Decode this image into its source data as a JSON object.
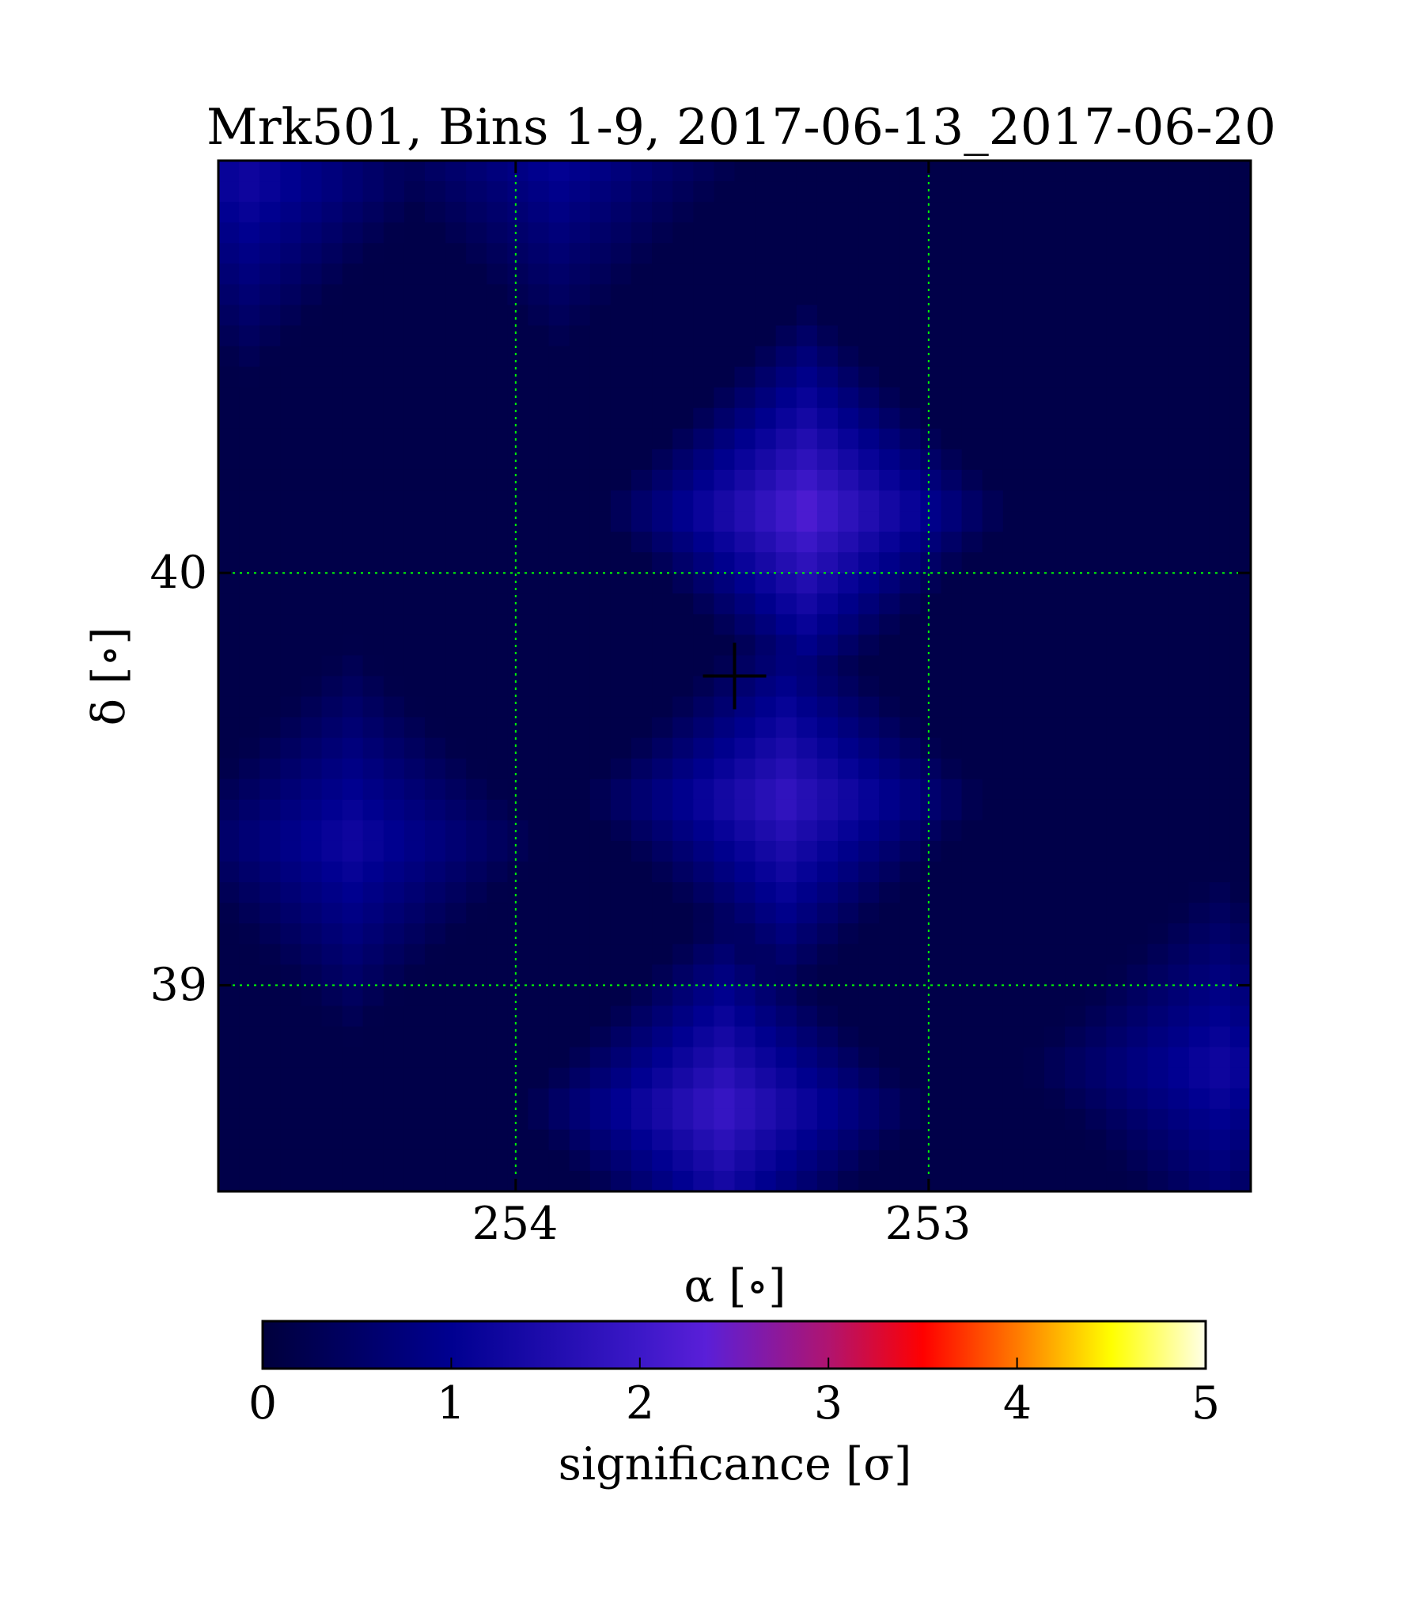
{
  "chart_data": {
    "type": "heatmap",
    "title": "Mrk501, Bins 1-9, 2017-06-13_2017-06-20",
    "xlabel": "α [∘]",
    "ylabel": "δ [∘]",
    "xticks": [
      254,
      253
    ],
    "xtick_labels": [
      "254",
      "253"
    ],
    "yticks": [
      40,
      39
    ],
    "ytick_labels": [
      "40",
      "39"
    ],
    "xlim": [
      254.72,
      252.22
    ],
    "ylim": [
      38.5,
      41.0
    ],
    "x_axis_inverted": true,
    "grid": true,
    "grid_color": "#00ff00",
    "source_marker": {
      "ra": 253.47,
      "dec": 39.75,
      "symbol": "+"
    },
    "hotspots": [
      {
        "ra": 253.3,
        "dec": 40.15,
        "significance": 2.3
      },
      {
        "ra": 253.35,
        "dec": 39.45,
        "significance": 1.9
      },
      {
        "ra": 253.5,
        "dec": 38.7,
        "significance": 2.0
      },
      {
        "ra": 254.4,
        "dec": 39.35,
        "significance": 1.3
      },
      {
        "ra": 254.65,
        "dec": 40.95,
        "significance": 1.3
      },
      {
        "ra": 252.3,
        "dec": 38.8,
        "significance": 1.3
      },
      {
        "ra": 253.9,
        "dec": 41.0,
        "significance": 1.1
      }
    ],
    "colorbar": {
      "label": "significance [σ]",
      "ticks": [
        "0",
        "1",
        "2",
        "3",
        "4",
        "5"
      ],
      "range": [
        0,
        5
      ],
      "colormap": [
        {
          "v": 0.0,
          "color": "#00003c"
        },
        {
          "v": 1.0,
          "color": "#000090"
        },
        {
          "v": 2.0,
          "color": "#3c18c8"
        },
        {
          "v": 2.35,
          "color": "#5a1fd8"
        },
        {
          "v": 3.0,
          "color": "#b01470"
        },
        {
          "v": 3.5,
          "color": "#ff0000"
        },
        {
          "v": 4.0,
          "color": "#ff7a00"
        },
        {
          "v": 4.5,
          "color": "#ffff00"
        },
        {
          "v": 5.0,
          "color": "#ffffe8"
        }
      ]
    }
  }
}
